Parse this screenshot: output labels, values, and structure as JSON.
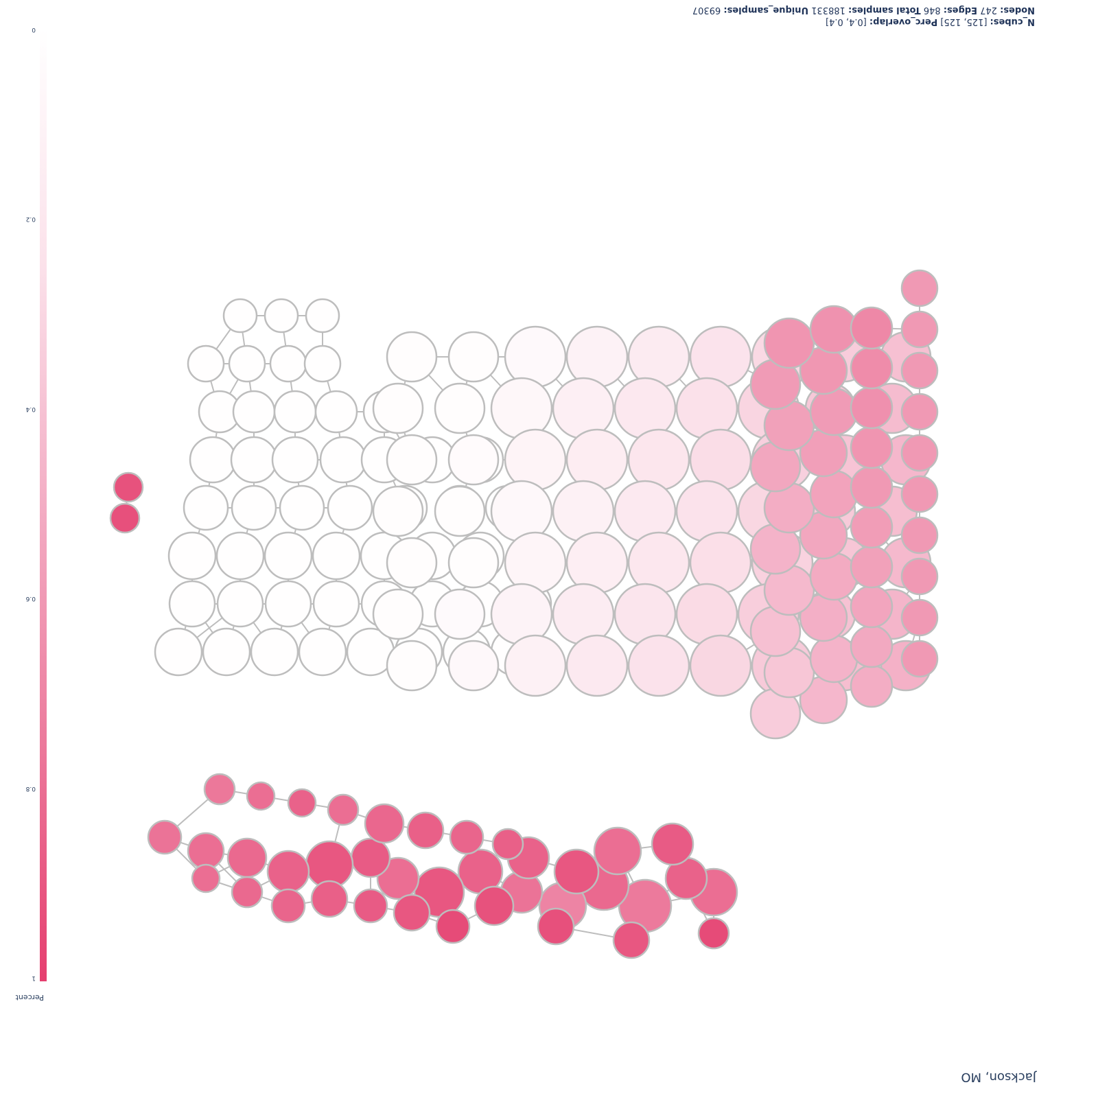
{
  "title": "Jackson, MO",
  "stats": {
    "line1": [
      {
        "label": "N_cubes:",
        "value": "[125, 125]"
      },
      {
        "label": "Perc_overlap:",
        "value": "[0.4, 0.4]"
      }
    ],
    "line2": [
      {
        "label": "Nodes:",
        "value": "247"
      },
      {
        "label": "Edges:",
        "value": "846"
      },
      {
        "label": "Total samples:",
        "value": "188331"
      },
      {
        "label": "Unique_samples:",
        "value": "69307"
      }
    ]
  },
  "colorbar": {
    "title": "Percent",
    "ticks": [
      "0",
      "0.2",
      "0.4",
      "0.6",
      "0.8",
      "1"
    ],
    "colors": [
      "#ffffff",
      "#fbe1ea",
      "#f3adc4",
      "#ec7a9c",
      "#e53f6f"
    ]
  },
  "graph": {
    "node_count": 247,
    "edge_count": 846,
    "edge_color": "#bdbdbd",
    "node_stroke": "#bdbdbd"
  }
}
